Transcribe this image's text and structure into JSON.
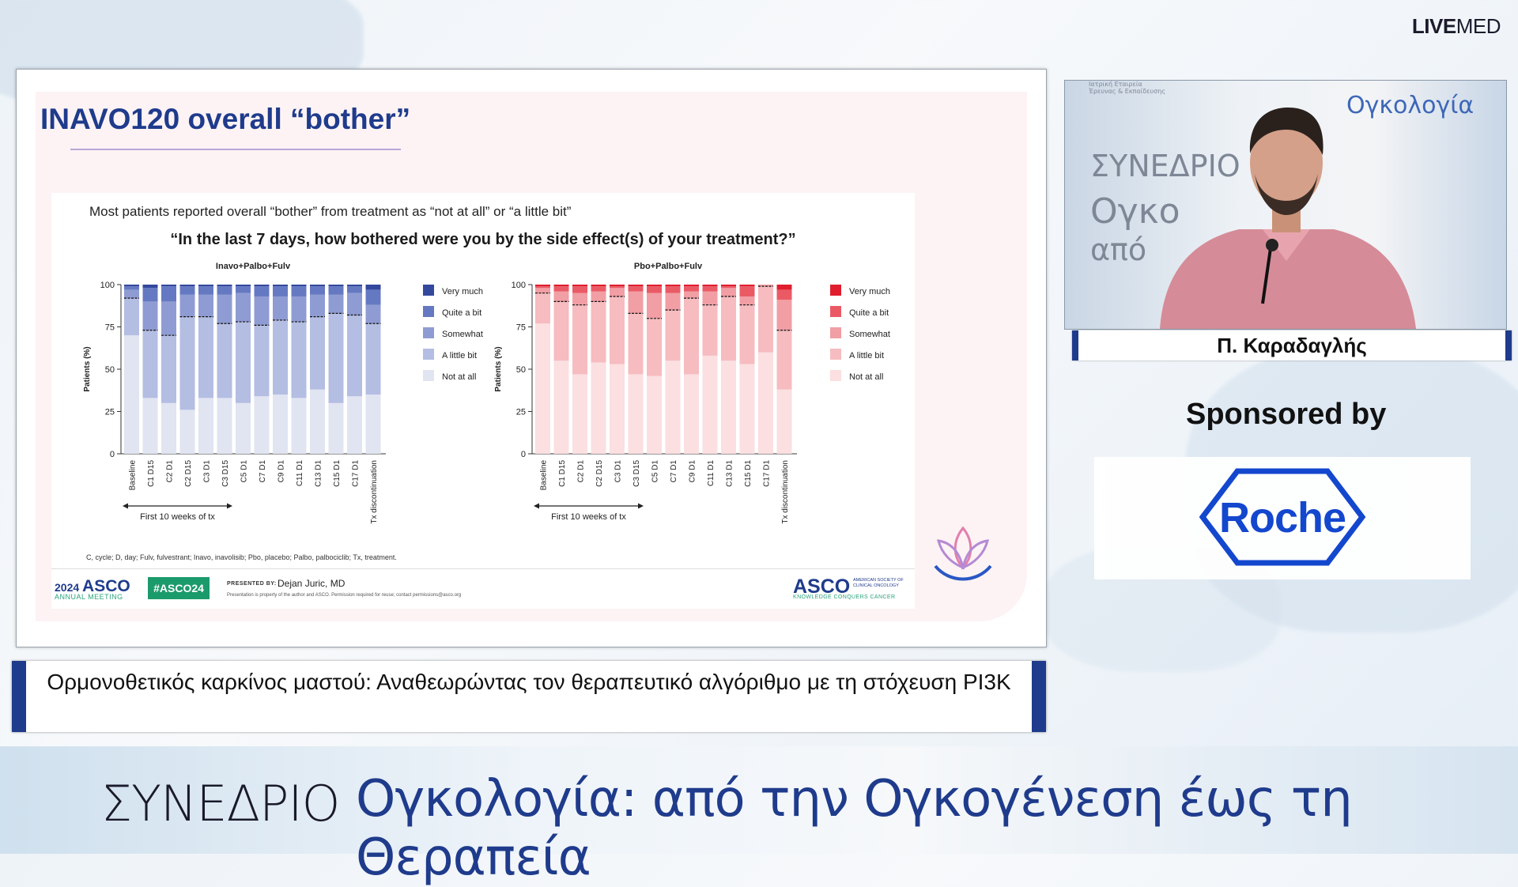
{
  "brand": {
    "bold": "LIVE",
    "light": "MED"
  },
  "slide": {
    "title": "INAVO120 overall “bother”",
    "subtitle": "Most patients reported overall “bother” from treatment as “not at all” or “a little bit”",
    "question": "“In the last 7 days, how bothered were you by the side effect(s) of your treatment?”",
    "footnote": "C, cycle; D, day; Fulv, fulvestrant; Inavo, inavolisib; Pbo, placebo; Palbo, palbociclib; Tx, treatment.",
    "first_weeks_label": "First 10 weeks of tx",
    "footer": {
      "year": "2024",
      "asco": "ASCO",
      "meeting": "ANNUAL MEETING",
      "hashtag": "#ASCO24",
      "presented_by": "PRESENTED BY:",
      "presenter": "Dejan Juric, MD",
      "disclaimer": "Presentation is property of the author and ASCO. Permission required for reuse; contact permissions@asco.org",
      "asco_logo": "ASCO",
      "asco_society": "AMERICAN SOCIETY OF CLINICAL ONCOLOGY",
      "asco_tagline": "KNOWLEDGE CONQUERS CANCER"
    }
  },
  "chart_data": [
    {
      "type": "bar",
      "stacked": true,
      "title": "Inavo+Palbo+Fulv",
      "ylabel": "Patients (%)",
      "ylim": [
        0,
        100
      ],
      "yticks": [
        0,
        25,
        50,
        75,
        100
      ],
      "categories": [
        "Baseline",
        "C1 D15",
        "C2 D1",
        "C2 D15",
        "C3 D1",
        "C3 D15",
        "C5 D1",
        "C7 D1",
        "C9 D1",
        "C11 D1",
        "C13 D1",
        "C15 D1",
        "C17 D1",
        "Tx discontinuation"
      ],
      "colors": [
        "#e1e4f1",
        "#b4bde2",
        "#8f9cd3",
        "#6579c2",
        "#34489e"
      ],
      "series": [
        {
          "name": "Not at all",
          "values": [
            70,
            33,
            30,
            26,
            33,
            33,
            30,
            34,
            35,
            33,
            38,
            30,
            34,
            35
          ]
        },
        {
          "name": "A little bit",
          "values": [
            22,
            40,
            40,
            55,
            48,
            44,
            48,
            42,
            44,
            45,
            43,
            53,
            48,
            42
          ]
        },
        {
          "name": "Somewhat",
          "values": [
            5,
            17,
            20,
            13,
            13,
            17,
            17,
            17,
            14,
            15,
            13,
            11,
            13,
            11
          ]
        },
        {
          "name": "Quite a bit",
          "values": [
            2,
            8,
            9,
            5,
            5,
            5,
            4,
            6,
            6,
            6,
            5,
            5,
            4,
            9
          ]
        },
        {
          "name": "Very much",
          "values": [
            1,
            2,
            1,
            1,
            1,
            1,
            1,
            1,
            1,
            1,
            1,
            1,
            1,
            3
          ]
        }
      ]
    },
    {
      "type": "bar",
      "stacked": true,
      "title": "Pbo+Palbo+Fulv",
      "ylabel": "Patients (%)",
      "ylim": [
        0,
        100
      ],
      "yticks": [
        0,
        25,
        50,
        75,
        100
      ],
      "categories": [
        "Baseline",
        "C1 D15",
        "C2 D1",
        "C2 D15",
        "C3 D1",
        "C3 D15",
        "C5 D1",
        "C7 D1",
        "C9 D1",
        "C11 D1",
        "C13 D1",
        "C15 D1",
        "C17 D1",
        "Tx discontinuation"
      ],
      "colors": [
        "#fbdfe1",
        "#f6bcc0",
        "#f19ea4",
        "#ea5a65",
        "#e01e2e"
      ],
      "series": [
        {
          "name": "Not at all",
          "values": [
            77,
            55,
            47,
            54,
            53,
            47,
            46,
            55,
            47,
            58,
            55,
            53,
            60,
            38
          ]
        },
        {
          "name": "A little bit",
          "values": [
            18,
            35,
            41,
            36,
            40,
            36,
            34,
            30,
            45,
            30,
            38,
            35,
            39,
            35
          ]
        },
        {
          "name": "Somewhat",
          "values": [
            3,
            6,
            7,
            6,
            5,
            13,
            15,
            10,
            4,
            8,
            5,
            5,
            1,
            18
          ]
        },
        {
          "name": "Quite a bit",
          "values": [
            1,
            3,
            4,
            3,
            1,
            3,
            4,
            4,
            3,
            3,
            1,
            6,
            0,
            6
          ]
        },
        {
          "name": "Very much",
          "values": [
            1,
            1,
            1,
            1,
            1,
            1,
            1,
            1,
            1,
            1,
            1,
            1,
            0,
            3
          ]
        }
      ]
    }
  ],
  "video": {
    "backdrop_big": "ΣΥΝΕΔΡΙΟ",
    "backdrop_big2": "Ογκο",
    "backdrop_big3": "από",
    "backdrop_logo": "Ογκολογία"
  },
  "speaker_name": "Π. Καραδαγλής",
  "sponsor": {
    "label": "Sponsored by",
    "name": "Roche"
  },
  "topic": "Ορμονοθετικός καρκίνος μαστού: Αναθεωρώντας τον θεραπευτικό αλγόριθμο με τη στόχευση PI3K",
  "bottom": {
    "left": "ΣΥΝΕΔΡΙΟ",
    "right": "Ογκολογία: από την Ογκογένεση έως τη Θεραπεία"
  }
}
